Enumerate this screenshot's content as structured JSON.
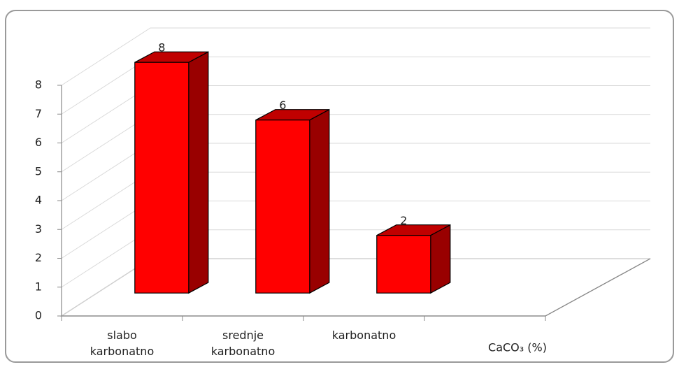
{
  "chart_data": {
    "type": "bar3d",
    "categories": [
      "slabo karbonatno",
      "srednje karbonatno",
      "karbonatno"
    ],
    "values": [
      8,
      6,
      2
    ],
    "x_label": "CaCO₃ (%)",
    "ylim": [
      0,
      8
    ],
    "yticks": [
      0,
      1,
      2,
      3,
      4,
      5,
      6,
      7,
      8
    ],
    "color": "#ff0000",
    "grid": true
  }
}
